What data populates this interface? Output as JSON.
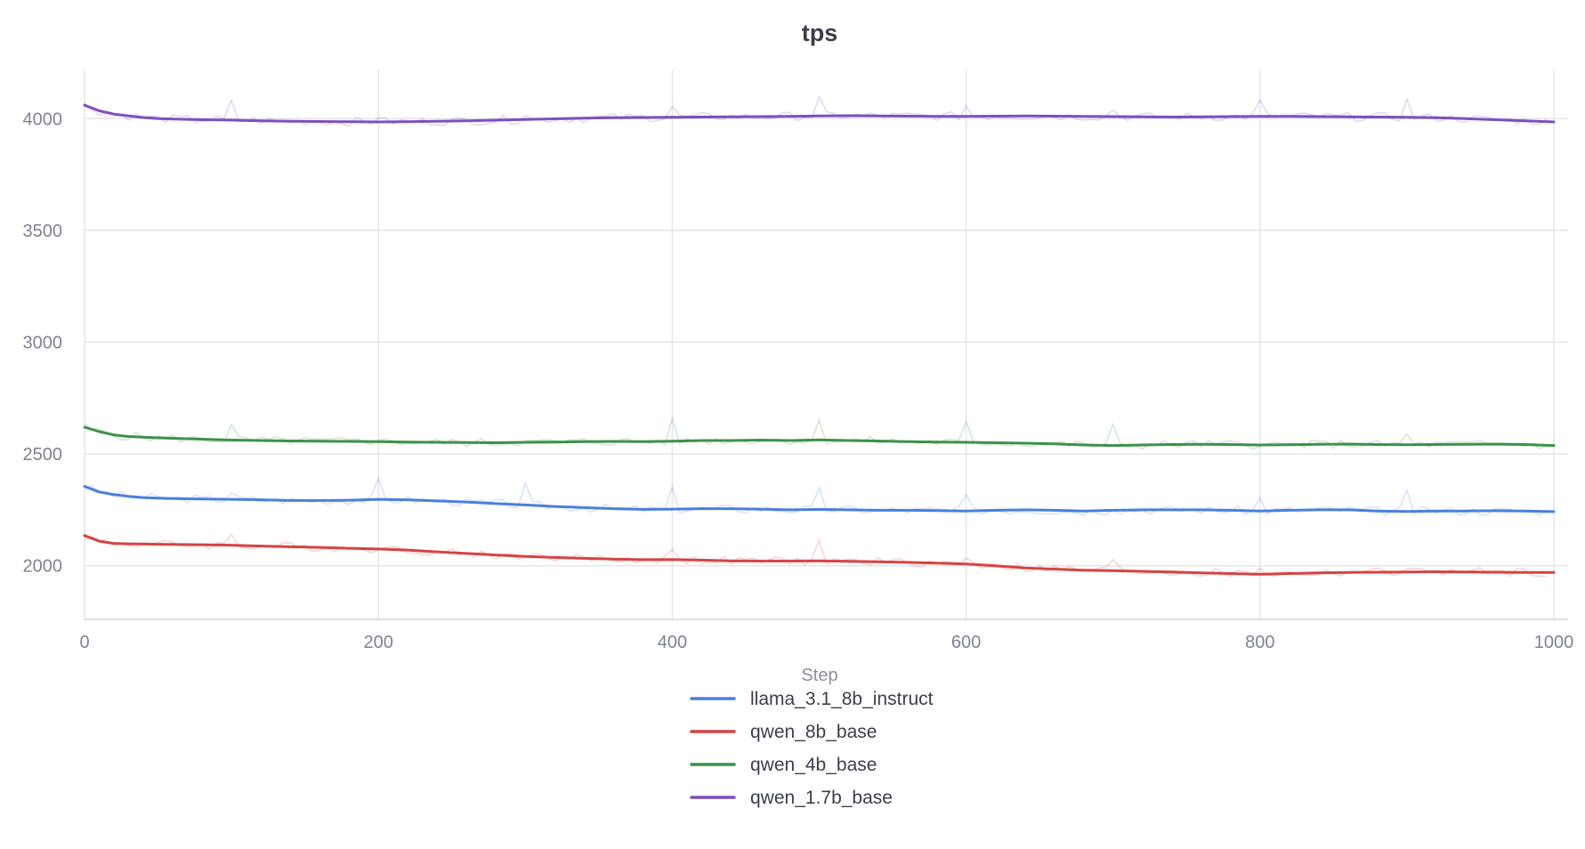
{
  "chart_data": {
    "type": "line",
    "title": "tps",
    "xlabel": "Step",
    "ylabel": "",
    "xlim": [
      0,
      1000
    ],
    "ylim": [
      1760,
      4220
    ],
    "xticks": [
      0,
      200,
      400,
      600,
      800,
      1000
    ],
    "yticks": [
      2000,
      2500,
      3000,
      3500,
      4000
    ],
    "xtick_labels": [
      "0",
      "200",
      "400",
      "600",
      "800",
      "1000"
    ],
    "ytick_labels": [
      "2000",
      "2500",
      "3000",
      "3500",
      "4000"
    ],
    "grid": true,
    "legend_position": "bottom-center",
    "series": [
      {
        "name": "llama_3.1_8b_instruct",
        "color": "#4a7fdc",
        "x": [
          0,
          10,
          20,
          30,
          40,
          50,
          60,
          80,
          100,
          120,
          140,
          160,
          180,
          200,
          220,
          240,
          260,
          280,
          300,
          320,
          340,
          360,
          380,
          400,
          420,
          440,
          460,
          480,
          500,
          520,
          540,
          560,
          580,
          600,
          620,
          640,
          660,
          680,
          700,
          720,
          740,
          760,
          780,
          800,
          820,
          840,
          860,
          880,
          900,
          920,
          940,
          960,
          980,
          1000
        ],
        "values": [
          2355,
          2330,
          2318,
          2310,
          2305,
          2302,
          2300,
          2298,
          2297,
          2295,
          2292,
          2292,
          2293,
          2297,
          2295,
          2290,
          2285,
          2278,
          2272,
          2265,
          2260,
          2255,
          2252,
          2253,
          2255,
          2255,
          2253,
          2250,
          2252,
          2250,
          2248,
          2248,
          2247,
          2245,
          2248,
          2250,
          2248,
          2245,
          2248,
          2250,
          2250,
          2250,
          2248,
          2245,
          2248,
          2250,
          2250,
          2245,
          2243,
          2245,
          2245,
          2246,
          2245,
          2242
        ]
      },
      {
        "name": "qwen_8b_base",
        "color": "#d64343",
        "x": [
          0,
          10,
          20,
          30,
          40,
          50,
          60,
          80,
          100,
          120,
          140,
          160,
          180,
          200,
          220,
          240,
          260,
          280,
          300,
          320,
          340,
          360,
          380,
          400,
          420,
          440,
          460,
          480,
          500,
          520,
          540,
          560,
          580,
          600,
          620,
          640,
          660,
          680,
          700,
          720,
          740,
          760,
          780,
          800,
          820,
          840,
          860,
          880,
          900,
          920,
          940,
          960,
          980,
          1000
        ],
        "values": [
          2135,
          2110,
          2100,
          2098,
          2097,
          2096,
          2095,
          2094,
          2092,
          2088,
          2085,
          2082,
          2078,
          2075,
          2070,
          2062,
          2055,
          2048,
          2042,
          2037,
          2033,
          2030,
          2027,
          2028,
          2025,
          2022,
          2021,
          2021,
          2022,
          2020,
          2018,
          2015,
          2012,
          2008,
          2000,
          1990,
          1985,
          1980,
          1978,
          1975,
          1972,
          1968,
          1965,
          1962,
          1965,
          1968,
          1970,
          1971,
          1972,
          1973,
          1972,
          1971,
          1970,
          1970
        ]
      },
      {
        "name": "qwen_4b_base",
        "color": "#3d9149",
        "x": [
          0,
          10,
          20,
          30,
          40,
          50,
          60,
          80,
          100,
          120,
          140,
          160,
          180,
          200,
          220,
          240,
          260,
          280,
          300,
          320,
          340,
          360,
          380,
          400,
          420,
          440,
          460,
          480,
          500,
          520,
          540,
          560,
          580,
          600,
          620,
          640,
          660,
          680,
          700,
          720,
          740,
          760,
          780,
          800,
          820,
          840,
          860,
          880,
          900,
          920,
          940,
          960,
          980,
          1000
        ],
        "values": [
          2620,
          2600,
          2585,
          2578,
          2575,
          2572,
          2570,
          2566,
          2562,
          2560,
          2558,
          2557,
          2556,
          2555,
          2553,
          2552,
          2551,
          2550,
          2552,
          2553,
          2555,
          2556,
          2555,
          2557,
          2560,
          2560,
          2562,
          2560,
          2563,
          2560,
          2558,
          2555,
          2553,
          2552,
          2550,
          2548,
          2545,
          2540,
          2538,
          2540,
          2542,
          2543,
          2542,
          2540,
          2541,
          2543,
          2544,
          2542,
          2541,
          2542,
          2543,
          2544,
          2542,
          2538
        ]
      },
      {
        "name": "qwen_1.7b_base",
        "color": "#7e4fbd",
        "x": [
          0,
          10,
          20,
          30,
          40,
          50,
          60,
          80,
          100,
          120,
          140,
          160,
          180,
          200,
          220,
          240,
          260,
          280,
          300,
          320,
          340,
          360,
          380,
          400,
          420,
          440,
          460,
          480,
          500,
          520,
          540,
          560,
          580,
          600,
          620,
          640,
          660,
          680,
          700,
          720,
          740,
          760,
          780,
          800,
          820,
          840,
          860,
          880,
          900,
          920,
          940,
          960,
          980,
          1000
        ],
        "values": [
          4060,
          4035,
          4020,
          4012,
          4005,
          4000,
          3998,
          3995,
          3993,
          3990,
          3988,
          3987,
          3986,
          3985,
          3986,
          3988,
          3990,
          3993,
          3996,
          3999,
          4002,
          4004,
          4005,
          4006,
          4007,
          4008,
          4009,
          4010,
          4012,
          4013,
          4012,
          4011,
          4010,
          4010,
          4011,
          4012,
          4011,
          4010,
          4009,
          4008,
          4007,
          4008,
          4009,
          4010,
          4010,
          4009,
          4008,
          4007,
          4006,
          4004,
          4000,
          3995,
          3990,
          3985
        ]
      }
    ]
  }
}
